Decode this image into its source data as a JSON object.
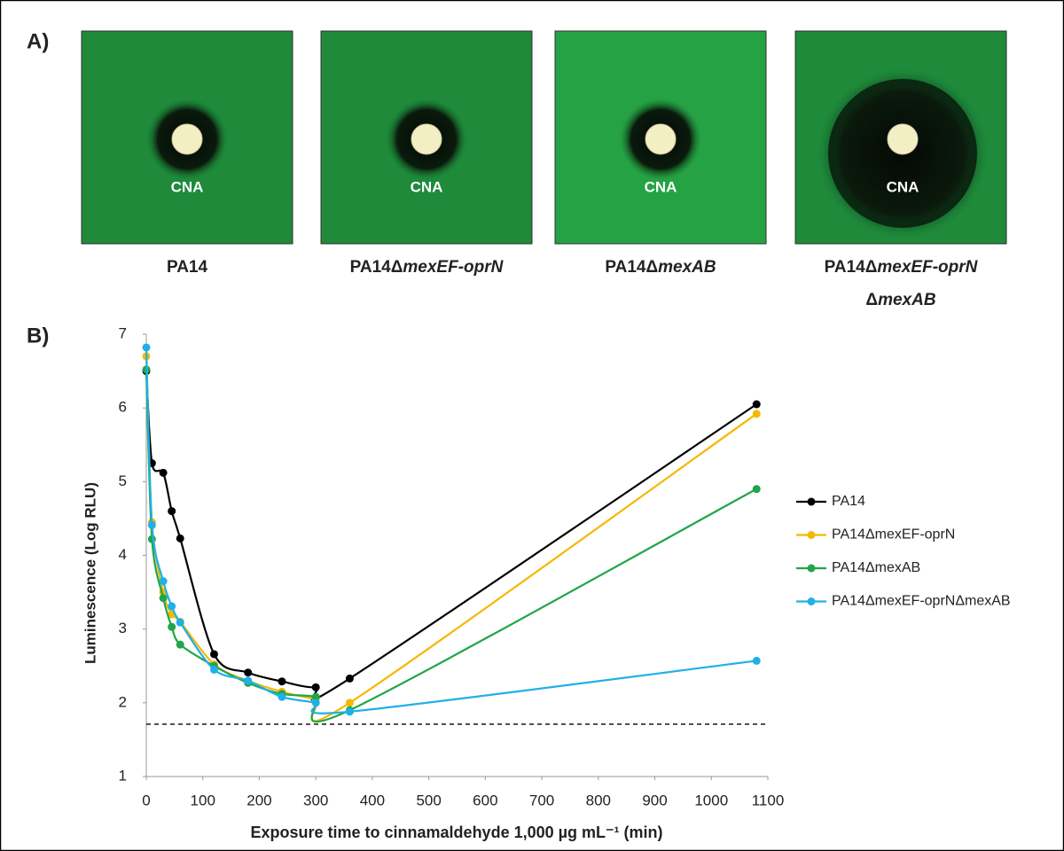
{
  "panel_a": {
    "label": "A)",
    "plates": [
      {
        "disc": "CNA",
        "label_lines": [
          {
            "plain": "PA14"
          }
        ]
      },
      {
        "disc": "CNA",
        "label_lines": [
          {
            "plain": "PA14Δ",
            "italic": "mexEF-oprN"
          }
        ]
      },
      {
        "disc": "CNA",
        "label_lines": [
          {
            "plain": "PA14Δ",
            "italic": "mexAB"
          }
        ]
      },
      {
        "disc": "CNA",
        "label_lines": [
          {
            "plain": "PA14Δ",
            "italic": "mexEF-oprN"
          },
          {
            "plain": "Δ",
            "italic": "mexAB"
          }
        ]
      }
    ]
  },
  "chart_data": {
    "type": "line",
    "panel_label": "B)",
    "xlabel": "Exposure time to cinnamaldehyde 1,000 µg mL⁻¹ (min)",
    "ylabel": "Luminescence (Log RLU)",
    "x": [
      0,
      10,
      30,
      45,
      60,
      120,
      180,
      240,
      300,
      360,
      1080
    ],
    "series": [
      {
        "name": "PA14",
        "color": "#000000",
        "values": [
          6.5,
          5.25,
          5.12,
          4.6,
          4.23,
          2.66,
          2.41,
          2.29,
          2.21,
          2.33,
          6.05
        ]
      },
      {
        "name": "PA14ΔmexEF-oprN",
        "color": "#f5b800",
        "values": [
          6.7,
          4.45,
          3.5,
          3.2,
          3.1,
          2.52,
          2.3,
          2.15,
          2.05,
          2.0,
          5.92
        ]
      },
      {
        "name": "PA14ΔmexAB",
        "color": "#1fa64a",
        "values": [
          6.52,
          4.22,
          3.42,
          3.03,
          2.79,
          2.5,
          2.27,
          2.12,
          2.08,
          1.9,
          4.9
        ]
      },
      {
        "name": "PA14ΔmexEF-oprNΔmexAB",
        "color": "#1fb0e8",
        "values": [
          6.82,
          4.41,
          3.65,
          3.31,
          3.09,
          2.45,
          2.3,
          2.08,
          2.0,
          1.88,
          2.57
        ]
      }
    ],
    "reference_line": 1.71,
    "xlim": [
      0,
      1100
    ],
    "xticks": [
      0,
      100,
      200,
      300,
      400,
      500,
      600,
      700,
      800,
      900,
      1000,
      1100
    ],
    "ylim": [
      1,
      7
    ],
    "yticks": [
      1,
      2,
      3,
      4,
      5,
      6,
      7
    ],
    "grid": false,
    "legend": "right"
  }
}
